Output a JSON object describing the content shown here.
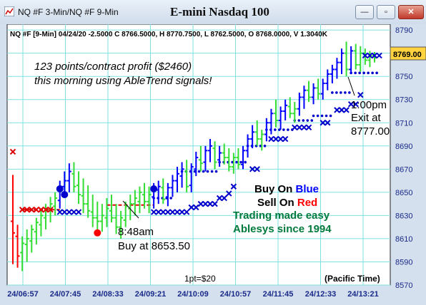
{
  "window": {
    "title": "NQ #F 3-Min/NQ #F 9-Min",
    "minimize_icon": "minimize-icon",
    "restore_icon": "restore-icon",
    "close_icon": "close-icon"
  },
  "chart_data": {
    "type": "candlestick",
    "title": "E-mini Nasdaq 100",
    "info_line": "NQ #F [9-Min] 04/24/20  -2.5000 C 8766.5000, H 8770.7500, L 8762.5000, O 8768.0000, V 1.3040K",
    "annotations": {
      "profit_line1": "123 points/contract profit ($2460)",
      "profit_line2": "this morning using AbleTrend signals!",
      "entry_time": "8:48am",
      "entry_price": "Buy at 8653.50",
      "exit_time": "1:00pm",
      "exit_label": "Exit at",
      "exit_price": "8777.00",
      "buy_prefix": "Buy On ",
      "buy_word": "Blue",
      "sell_prefix": "Sell On ",
      "sell_word": "Red",
      "slogan1": "Trading made easy",
      "slogan2": "Ablesys since 1994",
      "point_value": "1pt=$20",
      "timezone": "(Pacific Time)"
    },
    "current_price": "8769.00",
    "ylim": [
      8570,
      8795
    ],
    "y_ticks": [
      "8790",
      "8770",
      "8750",
      "8730",
      "8710",
      "8690",
      "8670",
      "8650",
      "8630",
      "8610",
      "8590",
      "8570"
    ],
    "x_ticks": [
      "24/06:57",
      "24/07:45",
      "24/08:33",
      "24/09:21",
      "24/10:09",
      "24/10:57",
      "24/11:45",
      "24/12:33",
      "24/13:21"
    ],
    "colors": {
      "up": "#0000ff",
      "down": "#ff0000",
      "neutral": "#33dd33",
      "stop_sell": "#dd0000",
      "stop_buy": "#0000cc",
      "grid": "#7fe0e0",
      "slogan": "#007a3d"
    },
    "grid": true,
    "bars": [
      {
        "o": 8625,
        "h": 8665,
        "l": 8588,
        "c": 8615,
        "col": "red"
      },
      {
        "o": 8612,
        "h": 8622,
        "l": 8585,
        "c": 8595,
        "col": "red"
      },
      {
        "o": 8598,
        "h": 8612,
        "l": 8582,
        "c": 8606,
        "col": "green"
      },
      {
        "o": 8605,
        "h": 8618,
        "l": 8590,
        "c": 8610,
        "col": "green"
      },
      {
        "o": 8608,
        "h": 8622,
        "l": 8598,
        "c": 8618,
        "col": "green"
      },
      {
        "o": 8616,
        "h": 8628,
        "l": 8605,
        "c": 8624,
        "col": "green"
      },
      {
        "o": 8622,
        "h": 8635,
        "l": 8612,
        "c": 8630,
        "col": "green"
      },
      {
        "o": 8628,
        "h": 8640,
        "l": 8618,
        "c": 8636,
        "col": "green"
      },
      {
        "o": 8634,
        "h": 8646,
        "l": 8624,
        "c": 8640,
        "col": "green"
      },
      {
        "o": 8638,
        "h": 8650,
        "l": 8630,
        "c": 8645,
        "col": "green"
      },
      {
        "o": 8643,
        "h": 8660,
        "l": 8636,
        "c": 8655,
        "col": "blue"
      },
      {
        "o": 8655,
        "h": 8668,
        "l": 8645,
        "c": 8660,
        "col": "blue"
      },
      {
        "o": 8660,
        "h": 8675,
        "l": 8650,
        "c": 8668,
        "col": "blue"
      },
      {
        "o": 8666,
        "h": 8676,
        "l": 8650,
        "c": 8655,
        "col": "green"
      },
      {
        "o": 8656,
        "h": 8668,
        "l": 8640,
        "c": 8648,
        "col": "green"
      },
      {
        "o": 8647,
        "h": 8662,
        "l": 8632,
        "c": 8640,
        "col": "green"
      },
      {
        "o": 8640,
        "h": 8656,
        "l": 8628,
        "c": 8634,
        "col": "green"
      },
      {
        "o": 8633,
        "h": 8648,
        "l": 8620,
        "c": 8628,
        "col": "green"
      },
      {
        "o": 8628,
        "h": 8642,
        "l": 8618,
        "c": 8625,
        "col": "green"
      },
      {
        "o": 8625,
        "h": 8640,
        "l": 8616,
        "c": 8630,
        "col": "green"
      },
      {
        "o": 8628,
        "h": 8645,
        "l": 8620,
        "c": 8636,
        "col": "green"
      },
      {
        "o": 8634,
        "h": 8648,
        "l": 8624,
        "c": 8628,
        "col": "green"
      },
      {
        "o": 8628,
        "h": 8640,
        "l": 8614,
        "c": 8620,
        "col": "green"
      },
      {
        "o": 8620,
        "h": 8634,
        "l": 8610,
        "c": 8628,
        "col": "green"
      },
      {
        "o": 8626,
        "h": 8642,
        "l": 8620,
        "c": 8638,
        "col": "green"
      },
      {
        "o": 8636,
        "h": 8648,
        "l": 8626,
        "c": 8640,
        "col": "green"
      },
      {
        "o": 8640,
        "h": 8652,
        "l": 8630,
        "c": 8645,
        "col": "green"
      },
      {
        "o": 8642,
        "h": 8655,
        "l": 8632,
        "c": 8650,
        "col": "green"
      },
      {
        "o": 8648,
        "h": 8658,
        "l": 8636,
        "c": 8642,
        "col": "green"
      },
      {
        "o": 8642,
        "h": 8655,
        "l": 8632,
        "c": 8648,
        "col": "green"
      },
      {
        "o": 8646,
        "h": 8658,
        "l": 8636,
        "c": 8653,
        "col": "blue"
      },
      {
        "o": 8652,
        "h": 8660,
        "l": 8640,
        "c": 8655,
        "col": "blue"
      },
      {
        "o": 8654,
        "h": 8662,
        "l": 8640,
        "c": 8644,
        "col": "green"
      },
      {
        "o": 8646,
        "h": 8658,
        "l": 8638,
        "c": 8654,
        "col": "blue"
      },
      {
        "o": 8654,
        "h": 8665,
        "l": 8646,
        "c": 8660,
        "col": "blue"
      },
      {
        "o": 8660,
        "h": 8672,
        "l": 8650,
        "c": 8666,
        "col": "blue"
      },
      {
        "o": 8664,
        "h": 8676,
        "l": 8654,
        "c": 8670,
        "col": "blue"
      },
      {
        "o": 8668,
        "h": 8678,
        "l": 8650,
        "c": 8655,
        "col": "green"
      },
      {
        "o": 8656,
        "h": 8675,
        "l": 8650,
        "c": 8672,
        "col": "blue"
      },
      {
        "o": 8670,
        "h": 8685,
        "l": 8664,
        "c": 8680,
        "col": "blue"
      },
      {
        "o": 8678,
        "h": 8690,
        "l": 8668,
        "c": 8675,
        "col": "green"
      },
      {
        "o": 8676,
        "h": 8690,
        "l": 8668,
        "c": 8686,
        "col": "blue"
      },
      {
        "o": 8686,
        "h": 8696,
        "l": 8676,
        "c": 8690,
        "col": "blue"
      },
      {
        "o": 8688,
        "h": 8694,
        "l": 8670,
        "c": 8676,
        "col": "green"
      },
      {
        "o": 8678,
        "h": 8690,
        "l": 8672,
        "c": 8684,
        "col": "blue"
      },
      {
        "o": 8684,
        "h": 8692,
        "l": 8674,
        "c": 8680,
        "col": "green"
      },
      {
        "o": 8680,
        "h": 8688,
        "l": 8668,
        "c": 8672,
        "col": "green"
      },
      {
        "o": 8672,
        "h": 8684,
        "l": 8666,
        "c": 8680,
        "col": "green"
      },
      {
        "o": 8680,
        "h": 8688,
        "l": 8670,
        "c": 8674,
        "col": "green"
      },
      {
        "o": 8674,
        "h": 8690,
        "l": 8670,
        "c": 8686,
        "col": "blue"
      },
      {
        "o": 8686,
        "h": 8700,
        "l": 8680,
        "c": 8696,
        "col": "blue"
      },
      {
        "o": 8696,
        "h": 8708,
        "l": 8688,
        "c": 8702,
        "col": "blue"
      },
      {
        "o": 8702,
        "h": 8712,
        "l": 8690,
        "c": 8696,
        "col": "green"
      },
      {
        "o": 8696,
        "h": 8704,
        "l": 8686,
        "c": 8700,
        "col": "green"
      },
      {
        "o": 8700,
        "h": 8714,
        "l": 8694,
        "c": 8710,
        "col": "blue"
      },
      {
        "o": 8710,
        "h": 8722,
        "l": 8700,
        "c": 8718,
        "col": "blue"
      },
      {
        "o": 8718,
        "h": 8730,
        "l": 8706,
        "c": 8712,
        "col": "green"
      },
      {
        "o": 8712,
        "h": 8724,
        "l": 8704,
        "c": 8720,
        "col": "blue"
      },
      {
        "o": 8720,
        "h": 8730,
        "l": 8712,
        "c": 8725,
        "col": "blue"
      },
      {
        "o": 8724,
        "h": 8732,
        "l": 8714,
        "c": 8718,
        "col": "green"
      },
      {
        "o": 8718,
        "h": 8728,
        "l": 8710,
        "c": 8722,
        "col": "green"
      },
      {
        "o": 8722,
        "h": 8736,
        "l": 8716,
        "c": 8732,
        "col": "blue"
      },
      {
        "o": 8732,
        "h": 8742,
        "l": 8722,
        "c": 8738,
        "col": "blue"
      },
      {
        "o": 8738,
        "h": 8746,
        "l": 8728,
        "c": 8732,
        "col": "green"
      },
      {
        "o": 8732,
        "h": 8744,
        "l": 8726,
        "c": 8740,
        "col": "blue"
      },
      {
        "o": 8740,
        "h": 8748,
        "l": 8730,
        "c": 8735,
        "col": "green"
      },
      {
        "o": 8735,
        "h": 8748,
        "l": 8730,
        "c": 8744,
        "col": "blue"
      },
      {
        "o": 8744,
        "h": 8756,
        "l": 8738,
        "c": 8752,
        "col": "blue"
      },
      {
        "o": 8752,
        "h": 8760,
        "l": 8744,
        "c": 8756,
        "col": "blue"
      },
      {
        "o": 8756,
        "h": 8766,
        "l": 8748,
        "c": 8762,
        "col": "blue"
      },
      {
        "o": 8762,
        "h": 8774,
        "l": 8752,
        "c": 8770,
        "col": "blue"
      },
      {
        "o": 8770,
        "h": 8780,
        "l": 8750,
        "c": 8756,
        "col": "green"
      },
      {
        "o": 8756,
        "h": 8776,
        "l": 8752,
        "c": 8772,
        "col": "blue"
      },
      {
        "o": 8772,
        "h": 8778,
        "l": 8756,
        "c": 8760,
        "col": "green"
      },
      {
        "o": 8760,
        "h": 8776,
        "l": 8754,
        "c": 8770,
        "col": "green"
      },
      {
        "o": 8770,
        "h": 8774,
        "l": 8760,
        "c": 8764,
        "col": "green"
      },
      {
        "o": 8764,
        "h": 8772,
        "l": 8758,
        "c": 8768,
        "col": "green"
      },
      {
        "o": 8768,
        "h": 8771,
        "l": 8762,
        "c": 8766,
        "col": "green"
      }
    ],
    "sell_stop": {
      "x_from": 2,
      "x_to": 10,
      "y": 8635
    },
    "buy_stop": {
      "x_from": 20,
      "x_to": 30,
      "y": 8639
    },
    "sell_entry_marker": {
      "x": 0,
      "y": 8685
    },
    "buy_signal_markers": [
      {
        "x": 10,
        "y": 8653
      },
      {
        "x": 11,
        "y": 8648
      },
      {
        "x": 30,
        "y": 8653
      }
    ],
    "sell_signal_marker": {
      "x": 18,
      "y": 8615
    },
    "trailing_x": [
      {
        "x": 10,
        "y": 8633
      },
      {
        "x": 11,
        "y": 8633
      },
      {
        "x": 12,
        "y": 8633
      },
      {
        "x": 13,
        "y": 8633
      },
      {
        "x": 14,
        "y": 8633
      },
      {
        "x": 30,
        "y": 8633
      },
      {
        "x": 31,
        "y": 8633
      },
      {
        "x": 32,
        "y": 8633
      },
      {
        "x": 33,
        "y": 8633
      },
      {
        "x": 34,
        "y": 8633
      },
      {
        "x": 35,
        "y": 8633
      },
      {
        "x": 36,
        "y": 8633
      },
      {
        "x": 37,
        "y": 8633
      },
      {
        "x": 38,
        "y": 8637
      },
      {
        "x": 39,
        "y": 8637
      },
      {
        "x": 40,
        "y": 8640
      },
      {
        "x": 41,
        "y": 8640
      },
      {
        "x": 42,
        "y": 8640
      },
      {
        "x": 43,
        "y": 8640
      },
      {
        "x": 44,
        "y": 8645
      },
      {
        "x": 45,
        "y": 8645
      },
      {
        "x": 46,
        "y": 8649
      },
      {
        "x": 47,
        "y": 8655
      },
      {
        "x": 51,
        "y": 8670
      },
      {
        "x": 52,
        "y": 8670
      },
      {
        "x": 55,
        "y": 8696
      },
      {
        "x": 56,
        "y": 8696
      },
      {
        "x": 57,
        "y": 8696
      },
      {
        "x": 58,
        "y": 8696
      },
      {
        "x": 60,
        "y": 8706
      },
      {
        "x": 61,
        "y": 8706
      },
      {
        "x": 62,
        "y": 8706
      },
      {
        "x": 63,
        "y": 8706
      },
      {
        "x": 66,
        "y": 8710
      },
      {
        "x": 67,
        "y": 8710
      },
      {
        "x": 69,
        "y": 8721
      },
      {
        "x": 70,
        "y": 8721
      },
      {
        "x": 71,
        "y": 8721
      },
      {
        "x": 72,
        "y": 8726
      },
      {
        "x": 73,
        "y": 8726
      },
      {
        "x": 74,
        "y": 8734
      },
      {
        "x": 75,
        "y": 8768
      },
      {
        "x": 76,
        "y": 8768
      },
      {
        "x": 77,
        "y": 8768
      },
      {
        "x": 78,
        "y": 8768
      }
    ],
    "blue_dots": [
      {
        "from": 30,
        "to": 34,
        "y": 8645
      },
      {
        "from": 36,
        "to": 44,
        "y": 8668
      },
      {
        "from": 44,
        "to": 50,
        "y": 8676
      },
      {
        "from": 50,
        "to": 54,
        "y": 8690
      },
      {
        "from": 54,
        "to": 60,
        "y": 8704
      },
      {
        "from": 60,
        "to": 64,
        "y": 8712
      },
      {
        "from": 64,
        "to": 68,
        "y": 8716
      },
      {
        "from": 68,
        "to": 72,
        "y": 8736
      },
      {
        "from": 72,
        "to": 78,
        "y": 8753
      }
    ]
  }
}
